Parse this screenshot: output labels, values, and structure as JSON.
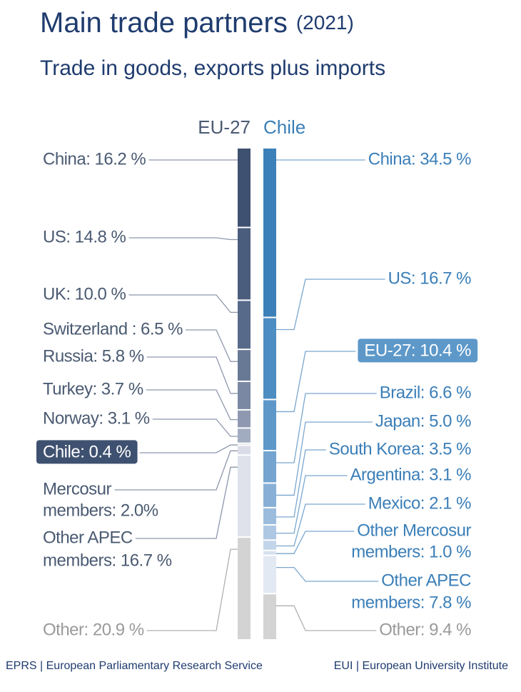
{
  "chart_data": {
    "type": "stacked-column",
    "title": "Main trade partners",
    "title_note": "(2021)",
    "subtitle": "Trade in goods, exports plus imports",
    "columns": [
      {
        "name": "EU-27",
        "label_color": "#4a5a72",
        "highlight": 7,
        "values": [
          16.2,
          14.8,
          10.0,
          6.5,
          5.8,
          3.7,
          3.1,
          0.4,
          2.0,
          16.7,
          20.9
        ],
        "value_labels": [
          "China: 16.2 %",
          "US: 14.8 %",
          "UK: 10.0 %",
          "Switzerland : 6.5 %",
          "Russia: 5.8 %",
          "Turkey: 3.7 %",
          "Norway: 3.1 %",
          "Chile: 0.4 %",
          [
            "Mercosur",
            "members: 2.0%"
          ],
          [
            "Other APEC",
            "members: 16.7 %"
          ],
          "Other: 20.9 %"
        ],
        "colors": [
          "#3f5170",
          "#4b5d7d",
          "#586a8a",
          "#687996",
          "#7a88a3",
          "#8e99b1",
          "#a2acc0",
          "#c9ced9",
          "#dadde7",
          "#dfe2ea",
          "#d3d3d3"
        ]
      },
      {
        "name": "Chile",
        "label_color": "#3b7fb8",
        "highlight": 2,
        "values": [
          34.5,
          16.7,
          10.4,
          6.6,
          5.0,
          3.5,
          3.1,
          2.1,
          1.0,
          7.8,
          9.4
        ],
        "value_labels": [
          "China: 34.5 %",
          "US: 16.7 %",
          "EU-27: 10.4 %",
          "Brazil: 6.6 %",
          "Japan: 5.0 %",
          "South Korea: 3.5 %",
          "Argentina: 3.1 %",
          "Mexico: 2.1 %",
          [
            "Other Mercosur",
            "members: 1.0 %"
          ],
          [
            "Other APEC",
            "members: 7.8 %"
          ],
          "Other: 9.4 %"
        ],
        "colors": [
          "#3b80b9",
          "#4c8dc2",
          "#5d98c9",
          "#74a4cf",
          "#88b0d6",
          "#9bbcdd",
          "#aec8e3",
          "#c3d5ea",
          "#d7e2f0",
          "#e3e9f3",
          "#d3d3d3"
        ]
      }
    ],
    "sources": [
      "EPRS | European Parliamentary Research Service",
      "EUI | European University Institute"
    ]
  }
}
